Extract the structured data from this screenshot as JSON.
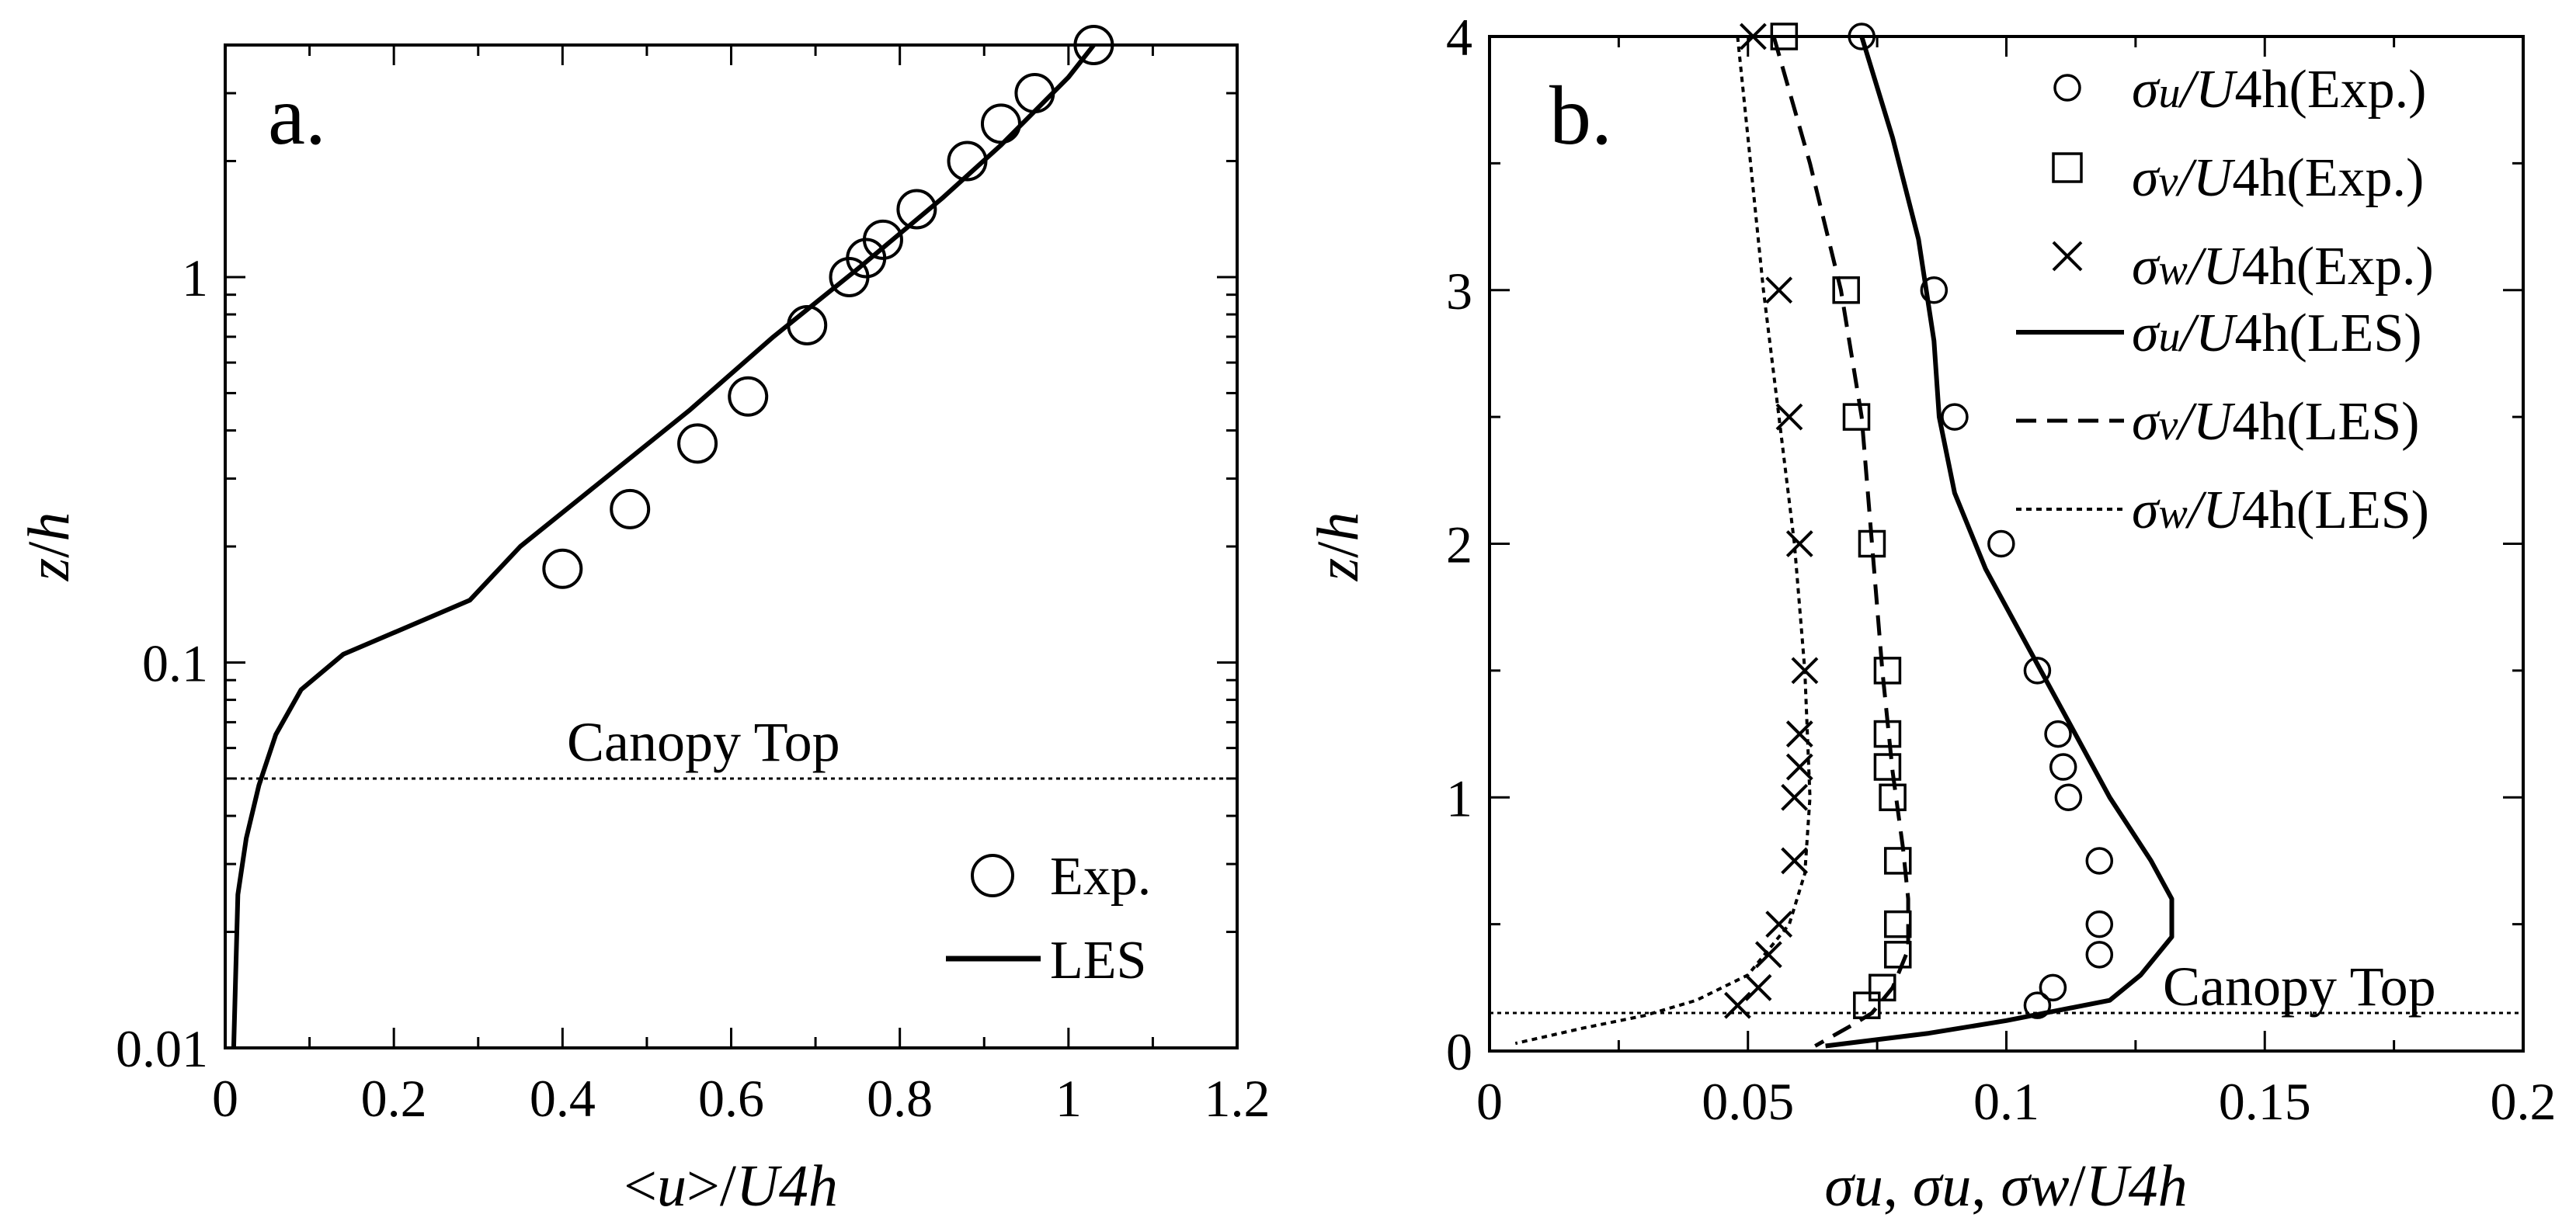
{
  "chart_data": [
    {
      "panel": "a.",
      "type": "line",
      "x_scale": "linear",
      "y_scale": "log",
      "xlim": [
        0,
        1.2
      ],
      "ylim": [
        0.01,
        4
      ],
      "xlabel": "<u>/U4h",
      "xlabel_parts": {
        "pre": "<",
        "var": "u",
        "mid": ">/",
        "den": "U4h"
      },
      "ylabel": "z/h",
      "ylabel_parts": {
        "a": "z",
        "sep": "/",
        "b": "h"
      },
      "x_ticks": [
        0,
        0.2,
        0.4,
        0.6,
        0.8,
        1,
        1.2
      ],
      "x_tick_labels": [
        "0",
        "0.2",
        "0.4",
        "0.6",
        "0.8",
        "1",
        "1.2"
      ],
      "y_ticks": [
        0.01,
        0.1,
        1
      ],
      "y_tick_labels": [
        "0.01",
        "0.1",
        "1"
      ],
      "legend": {
        "position": "bottom-right",
        "entries": [
          "Exp.",
          "LES"
        ]
      },
      "annotations": [
        {
          "text": "Canopy Top",
          "y": 0.05
        }
      ],
      "series": [
        {
          "name": "Exp.",
          "style": "open-circle",
          "x": [
            0.4,
            0.48,
            0.56,
            0.62,
            0.69,
            0.74,
            0.76,
            0.78,
            0.82,
            0.88,
            0.92,
            0.96,
            1.03
          ],
          "y": [
            0.175,
            0.25,
            0.37,
            0.49,
            0.75,
            1.0,
            1.12,
            1.25,
            1.5,
            2.0,
            2.5,
            3.0,
            4.0
          ]
        },
        {
          "name": "LES",
          "style": "solid",
          "x": [
            0.01,
            0.015,
            0.025,
            0.04,
            0.06,
            0.09,
            0.14,
            0.29,
            0.35,
            0.45,
            0.55,
            0.65,
            0.75,
            0.85,
            0.92,
            1.0,
            1.03
          ],
          "y": [
            0.01,
            0.025,
            0.035,
            0.048,
            0.065,
            0.085,
            0.105,
            0.145,
            0.2,
            0.3,
            0.45,
            0.7,
            1.05,
            1.6,
            2.2,
            3.3,
            4.0
          ]
        }
      ]
    },
    {
      "panel": "b.",
      "type": "line",
      "x_scale": "linear",
      "y_scale": "linear",
      "xlim": [
        0,
        0.2
      ],
      "ylim": [
        0,
        4
      ],
      "xlabel": "σu, σu, σw/U4h",
      "xlabel_parts": {
        "s1": "σu",
        "s2": "σu",
        "s3": "σw",
        "den": "U4h"
      },
      "ylabel": "z/h",
      "ylabel_parts": {
        "a": "z",
        "sep": "/",
        "b": "h"
      },
      "x_ticks": [
        0,
        0.05,
        0.1,
        0.15,
        0.2
      ],
      "x_tick_labels": [
        "0",
        "0.05",
        "0.1",
        "0.15",
        "0.2"
      ],
      "y_ticks": [
        0,
        1,
        2,
        3,
        4
      ],
      "y_tick_labels": [
        "0",
        "1",
        "2",
        "3",
        "4"
      ],
      "legend": {
        "position": "top-right",
        "entries": [
          "σu/U4h(Exp.)",
          "σv/U4h(Exp.)",
          "σw/U4h(Exp.)",
          "σu/U4h(LES)",
          "σv/U4h(LES)",
          "σw/U4h(LES)"
        ],
        "entry_parts": [
          {
            "sym": "σ",
            "sub": "u",
            "rest": "/U",
            "tail": "4h(Exp.)"
          },
          {
            "sym": "σ",
            "sub": "v",
            "rest": "/U",
            "tail": "4h(Exp.)"
          },
          {
            "sym": "σ",
            "sub": "w",
            "rest": "/U",
            "tail": "4h(Exp.)"
          },
          {
            "sym": "σ",
            "sub": "u",
            "rest": "/U",
            "tail": "4h(LES)"
          },
          {
            "sym": "σ",
            "sub": "v",
            "rest": "/U",
            "tail": "4h(LES)"
          },
          {
            "sym": "σ",
            "sub": "w",
            "rest": "/U",
            "tail": "4h(LES)"
          }
        ]
      },
      "annotations": [
        {
          "text": "Canopy Top",
          "y": 0.15
        }
      ],
      "series": [
        {
          "name": "σu/U4h(Exp.)",
          "style": "open-circle",
          "x": [
            0.072,
            0.086,
            0.09,
            0.099,
            0.106,
            0.11,
            0.111,
            0.112,
            0.118,
            0.118,
            0.118,
            0.109,
            0.106
          ],
          "y": [
            4.0,
            3.0,
            2.5,
            2.0,
            1.5,
            1.25,
            1.12,
            1.0,
            0.75,
            0.5,
            0.38,
            0.25,
            0.18
          ]
        },
        {
          "name": "σv/U4h(Exp.)",
          "style": "open-square",
          "x": [
            0.057,
            0.069,
            0.071,
            0.074,
            0.077,
            0.077,
            0.077,
            0.078,
            0.079,
            0.079,
            0.079,
            0.076,
            0.073
          ],
          "y": [
            4.0,
            3.0,
            2.5,
            2.0,
            1.5,
            1.25,
            1.12,
            1.0,
            0.75,
            0.5,
            0.38,
            0.25,
            0.18
          ]
        },
        {
          "name": "σw/U4h(Exp.)",
          "style": "cross",
          "x": [
            0.051,
            0.056,
            0.058,
            0.06,
            0.061,
            0.06,
            0.06,
            0.059,
            0.059,
            0.056,
            0.054,
            0.052,
            0.048
          ],
          "y": [
            4.0,
            3.0,
            2.5,
            2.0,
            1.5,
            1.25,
            1.12,
            1.0,
            0.75,
            0.5,
            0.38,
            0.25,
            0.18
          ]
        },
        {
          "name": "σu/U4h(LES)",
          "style": "solid",
          "x": [
            0.072,
            0.078,
            0.083,
            0.086,
            0.087,
            0.09,
            0.096,
            0.104,
            0.112,
            0.12,
            0.128,
            0.132,
            0.132,
            0.126,
            0.12,
            0.1,
            0.085,
            0.065
          ],
          "y": [
            4.0,
            3.6,
            3.2,
            2.8,
            2.5,
            2.2,
            1.9,
            1.6,
            1.3,
            1.0,
            0.75,
            0.6,
            0.45,
            0.3,
            0.2,
            0.12,
            0.07,
            0.02
          ]
        },
        {
          "name": "σv/U4h(LES)",
          "style": "dashed",
          "x": [
            0.055,
            0.062,
            0.068,
            0.072,
            0.074,
            0.076,
            0.078,
            0.08,
            0.081,
            0.081,
            0.078,
            0.074,
            0.07,
            0.063
          ],
          "y": [
            4.0,
            3.5,
            3.0,
            2.5,
            2.0,
            1.5,
            1.1,
            0.8,
            0.6,
            0.4,
            0.25,
            0.15,
            0.1,
            0.02
          ]
        },
        {
          "name": "σw/U4h(LES)",
          "style": "dotted",
          "x": [
            0.048,
            0.05,
            0.053,
            0.056,
            0.059,
            0.061,
            0.062,
            0.061,
            0.058,
            0.05,
            0.04,
            0.03,
            0.018,
            0.005
          ],
          "y": [
            4.0,
            3.6,
            3.0,
            2.5,
            2.0,
            1.5,
            1.0,
            0.7,
            0.5,
            0.3,
            0.2,
            0.14,
            0.09,
            0.03
          ]
        }
      ]
    }
  ]
}
